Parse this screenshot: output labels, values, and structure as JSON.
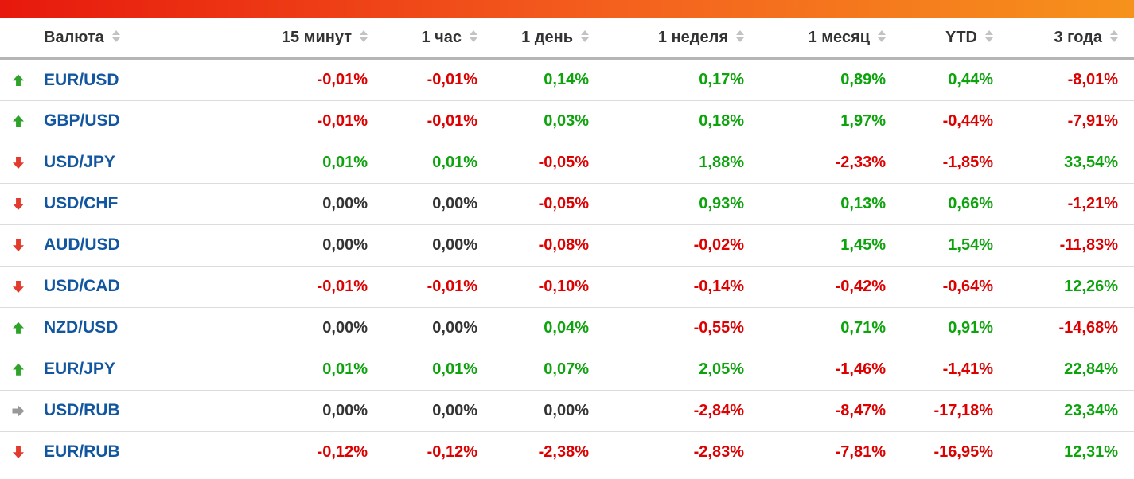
{
  "topbar": {
    "gradient_left_color": "#e7180d",
    "gradient_right_color": "#f6921c"
  },
  "colors": {
    "positive_value": "#0da30d",
    "negative_value": "#dd0000",
    "zero_value": "#333333",
    "pair_link": "#1256a0",
    "up_arrow": "#2ea32a",
    "down_arrow": "#e23a2d",
    "neutral_arrow": "#999999"
  },
  "table": {
    "columns": [
      {
        "id": "pair",
        "label": "Валюта"
      },
      {
        "id": "m15",
        "label": "15 минут"
      },
      {
        "id": "h1",
        "label": "1 час"
      },
      {
        "id": "d1",
        "label": "1 день"
      },
      {
        "id": "w1",
        "label": "1 неделя"
      },
      {
        "id": "mo1",
        "label": "1 месяц"
      },
      {
        "id": "ytd",
        "label": "YTD"
      },
      {
        "id": "y3",
        "label": "3 года"
      }
    ],
    "rows": [
      {
        "pair": "EUR/USD",
        "direction": "up",
        "values": [
          "-0,01%",
          "-0,01%",
          "0,14%",
          "0,17%",
          "0,89%",
          "0,44%",
          "-8,01%"
        ]
      },
      {
        "pair": "GBP/USD",
        "direction": "up",
        "values": [
          "-0,01%",
          "-0,01%",
          "0,03%",
          "0,18%",
          "1,97%",
          "-0,44%",
          "-7,91%"
        ]
      },
      {
        "pair": "USD/JPY",
        "direction": "down",
        "values": [
          "0,01%",
          "0,01%",
          "-0,05%",
          "1,88%",
          "-2,33%",
          "-1,85%",
          "33,54%"
        ]
      },
      {
        "pair": "USD/CHF",
        "direction": "down",
        "values": [
          "0,00%",
          "0,00%",
          "-0,05%",
          "0,93%",
          "0,13%",
          "0,66%",
          "-1,21%"
        ]
      },
      {
        "pair": "AUD/USD",
        "direction": "down",
        "values": [
          "0,00%",
          "0,00%",
          "-0,08%",
          "-0,02%",
          "1,45%",
          "1,54%",
          "-11,83%"
        ]
      },
      {
        "pair": "USD/CAD",
        "direction": "down",
        "values": [
          "-0,01%",
          "-0,01%",
          "-0,10%",
          "-0,14%",
          "-0,42%",
          "-0,64%",
          "12,26%"
        ]
      },
      {
        "pair": "NZD/USD",
        "direction": "up",
        "values": [
          "0,00%",
          "0,00%",
          "0,04%",
          "-0,55%",
          "0,71%",
          "0,91%",
          "-14,68%"
        ]
      },
      {
        "pair": "EUR/JPY",
        "direction": "up",
        "values": [
          "0,01%",
          "0,01%",
          "0,07%",
          "2,05%",
          "-1,46%",
          "-1,41%",
          "22,84%"
        ]
      },
      {
        "pair": "USD/RUB",
        "direction": "right",
        "values": [
          "0,00%",
          "0,00%",
          "0,00%",
          "-2,84%",
          "-8,47%",
          "-17,18%",
          "23,34%"
        ]
      },
      {
        "pair": "EUR/RUB",
        "direction": "down",
        "values": [
          "-0,12%",
          "-0,12%",
          "-2,38%",
          "-2,83%",
          "-7,81%",
          "-16,95%",
          "12,31%"
        ]
      }
    ]
  }
}
